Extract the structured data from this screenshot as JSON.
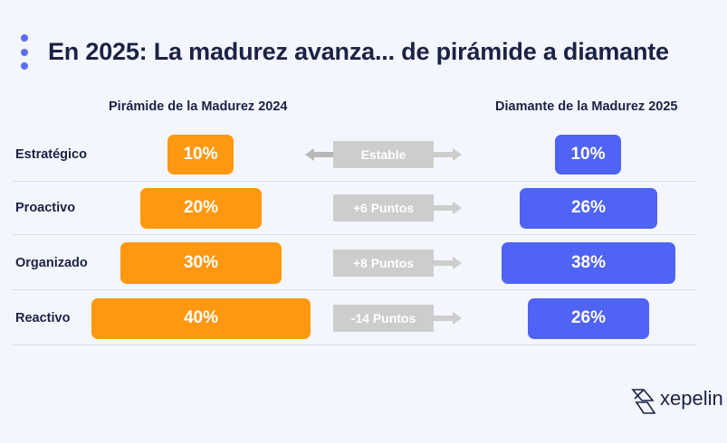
{
  "title": "En 2025: La madurez avanza... de pirámide a diamante",
  "columns": {
    "left": "Pirámide de la Madurez 2024",
    "right": "Diamante de la Madurez 2025"
  },
  "colors": {
    "orange": "#ff9811",
    "blue": "#4f63f5",
    "change": "#cdcdcd"
  },
  "rows": [
    {
      "level": "Estratégico",
      "v2024": "10%",
      "change": "Estable",
      "v2025": "10%"
    },
    {
      "level": "Proactivo",
      "v2024": "20%",
      "change": "+6 Puntos",
      "v2025": "26%"
    },
    {
      "level": "Organizado",
      "v2024": "30%",
      "change": "+8 Puntos",
      "v2025": "38%"
    },
    {
      "level": "Reactivo",
      "v2024": "40%",
      "change": "-14 Puntos",
      "v2025": "26%"
    }
  ],
  "logo": {
    "text": "xepelin",
    "icon": "xepelin-logo-icon"
  }
}
